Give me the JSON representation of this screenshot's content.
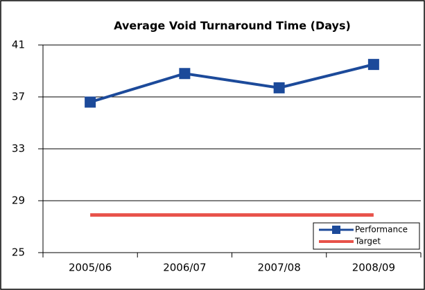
{
  "chart_data": {
    "type": "line",
    "title": "Average Void Turnaround Time (Days)",
    "categories": [
      "2005/06",
      "2006/07",
      "2007/08",
      "2008/09"
    ],
    "series": [
      {
        "name": "Performance",
        "color": "#1c4a9a",
        "values": [
          36.6,
          38.8,
          37.7,
          39.5
        ],
        "marker": "square"
      },
      {
        "name": "Target",
        "color": "#e8524a",
        "values": [
          27.9,
          27.9,
          27.9,
          27.9
        ]
      }
    ],
    "ylim": [
      25,
      41
    ],
    "yticks": [
      25,
      29,
      33,
      37,
      41
    ],
    "grid": true,
    "legend": "lower right"
  }
}
